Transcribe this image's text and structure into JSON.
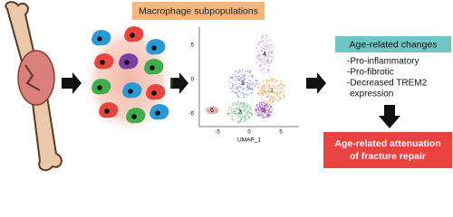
{
  "header": {
    "title": "Macrophage subpopulations"
  },
  "umap": {
    "x_label": "UMAP_1",
    "y_ticks": [
      "5",
      "0",
      "-5"
    ],
    "x_ticks": [
      "-5",
      "0",
      "5"
    ],
    "clusters": [
      "1",
      "2",
      "3",
      "4",
      "5",
      "6"
    ]
  },
  "changes": {
    "title": "Age-related changes",
    "items": [
      "-Pro-inflammatory",
      "-Pro-fibrotic",
      "-Decreased TREM2",
      "expression"
    ]
  },
  "outcome": {
    "lines": [
      "Age-related attenuation",
      "of fracture repair"
    ]
  }
}
